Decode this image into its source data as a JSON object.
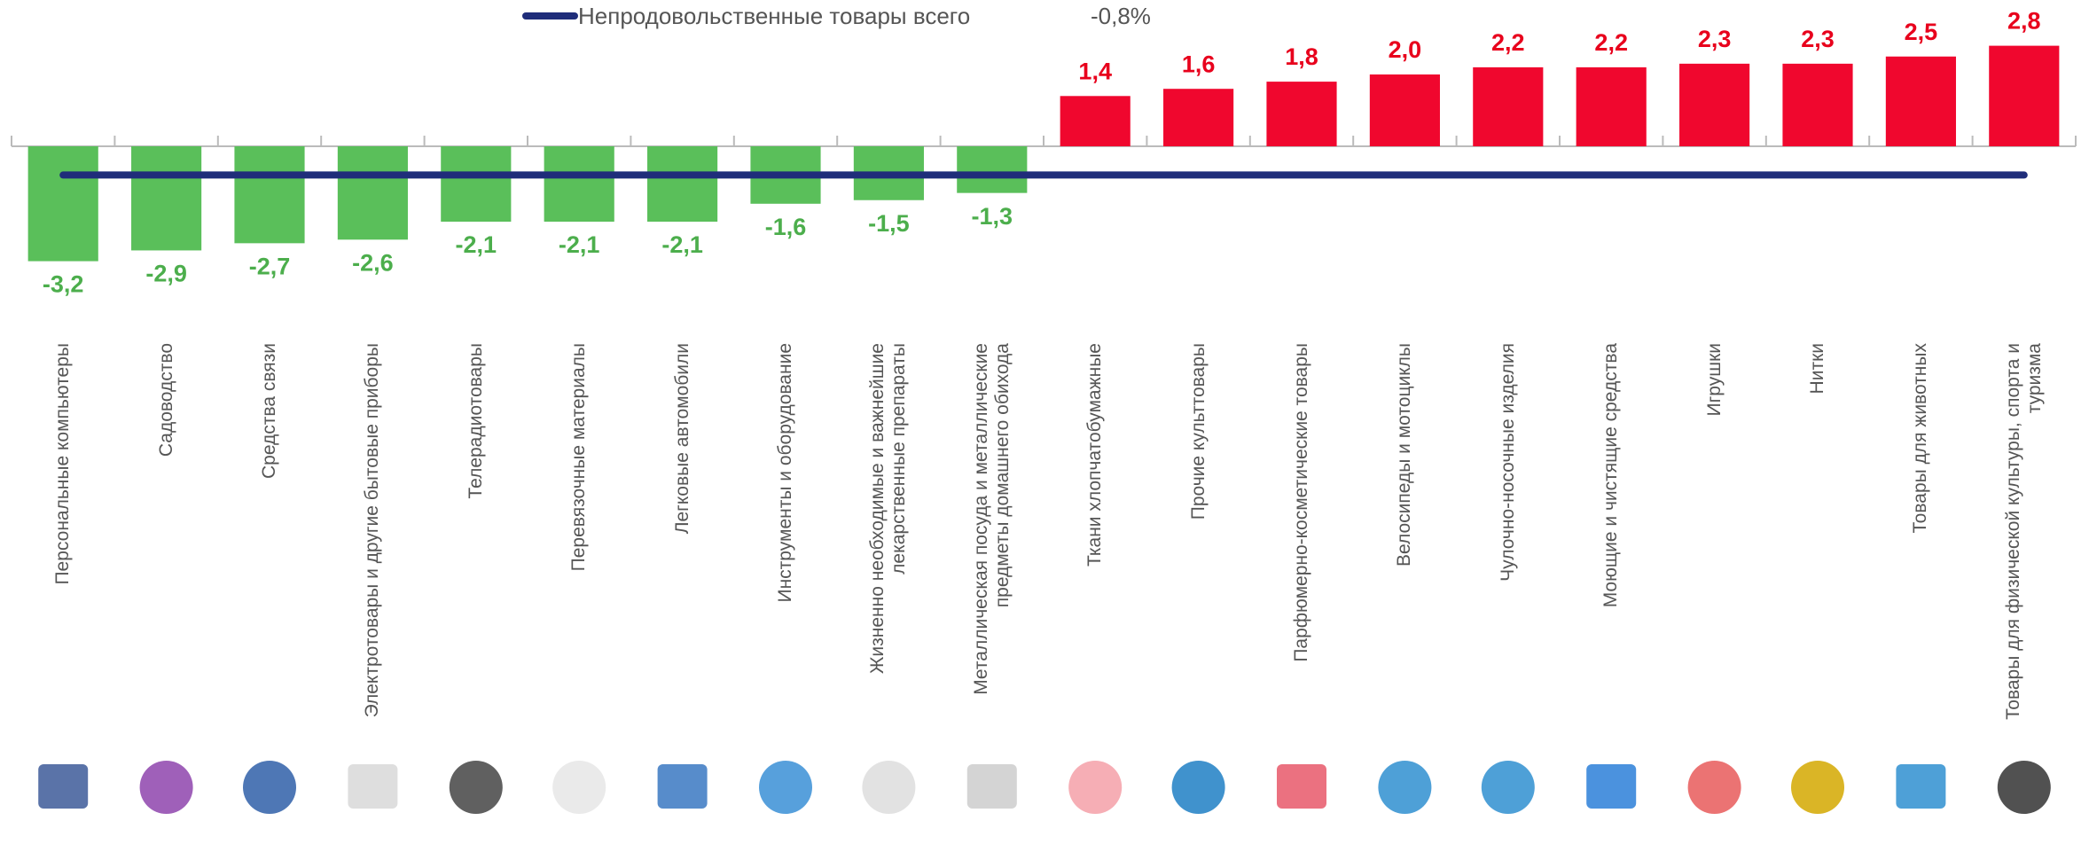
{
  "chart_data": {
    "type": "bar",
    "categories": [
      "Персональные компьютеры",
      "Садоводство",
      "Средства связи",
      "Электротовары и другие бытовые приборы",
      "Телерадиотовары",
      "Перевязочные материалы",
      "Легковые автомобили",
      "Инструменты и оборудование",
      "Жизненно необходимые и важнейшие лекарственные препараты",
      "Металлическая посуда и металлические предметы домашнего обихода",
      "Ткани хлопчатобумажные",
      "Прочие культтовары",
      "Парфюмерно-косметические товары",
      "Велосипеды и мотоциклы",
      "Чулочно-носочные изделия",
      "Моющие и чистящие средства",
      "Игрушки",
      "Нитки",
      "Товары для животных",
      "Товары для физической культуры, спорта и туризма"
    ],
    "values": [
      -3.2,
      -2.9,
      -2.7,
      -2.6,
      -2.1,
      -2.1,
      -2.1,
      -1.6,
      -1.5,
      -1.3,
      1.4,
      1.6,
      1.8,
      2.0,
      2.2,
      2.2,
      2.3,
      2.3,
      2.5,
      2.8
    ],
    "value_labels": [
      "-3,2",
      "-2,9",
      "-2,7",
      "-2,6",
      "-2,1",
      "-2,1",
      "-2,1",
      "-1,6",
      "-1,5",
      "-1,3",
      "1,4",
      "1,6",
      "1,8",
      "2,0",
      "2,2",
      "2,2",
      "2,3",
      "2,3",
      "2,5",
      "2,8"
    ],
    "positive_color": "#f0072e",
    "negative_color": "#5abf5a",
    "ylim": [
      -4,
      4
    ],
    "reference": {
      "label": "Непродовольственные товары всего",
      "value": -0.8,
      "value_label": "-0,8%",
      "color": "#1f2d7a"
    }
  }
}
